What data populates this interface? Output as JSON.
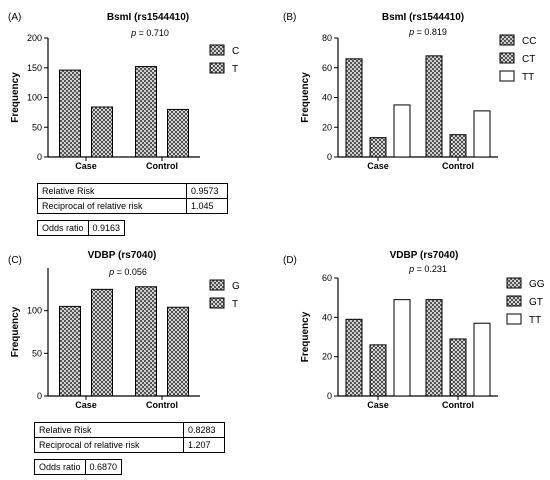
{
  "chart_data": [
    {
      "panel": "(A)",
      "type": "bar",
      "title": "BsmI (rs1544410)",
      "p_label": "p",
      "p_value": "= 0.710",
      "ylabel": "Frequency",
      "ylim": [
        0,
        200
      ],
      "yticks": [
        0,
        50,
        100,
        150,
        200
      ],
      "categories": [
        "Case",
        "Control"
      ],
      "series": [
        {
          "name": "C",
          "pattern": "checker",
          "values": [
            146,
            152
          ]
        },
        {
          "name": "T",
          "pattern": "cross",
          "values": [
            84,
            80
          ]
        }
      ],
      "legend_position": "right",
      "stats": [
        {
          "label": "Relative Risk",
          "value": "0.9573"
        },
        {
          "label": "Reciprocal of relative risk",
          "value": "1.045"
        }
      ],
      "odds": {
        "label": "Odds ratio",
        "value": "0.9163"
      }
    },
    {
      "panel": "(B)",
      "type": "bar",
      "title": "BsmI (rs1544410)",
      "p_label": "p",
      "p_value": "= 0.819",
      "ylabel": "Frequency",
      "ylim": [
        0,
        80
      ],
      "yticks": [
        0,
        20,
        40,
        60,
        80
      ],
      "categories": [
        "Case",
        "Control"
      ],
      "series": [
        {
          "name": "CC",
          "pattern": "checker",
          "values": [
            66,
            68
          ]
        },
        {
          "name": "CT",
          "pattern": "cross",
          "values": [
            13,
            15
          ]
        },
        {
          "name": "TT",
          "pattern": "none",
          "values": [
            35,
            31
          ]
        }
      ],
      "legend_position": "right"
    },
    {
      "panel": "(C)",
      "type": "bar",
      "title": "VDBP (rs7040)",
      "p_label": "p",
      "p_value": "= 0.056",
      "ylabel": "Frequency",
      "ylim": [
        0,
        150
      ],
      "yticks": [
        0,
        50,
        100
      ],
      "categories": [
        "Case",
        "Control"
      ],
      "series": [
        {
          "name": "G",
          "pattern": "checker",
          "values": [
            105,
            128
          ]
        },
        {
          "name": "T",
          "pattern": "cross",
          "values": [
            125,
            104
          ]
        }
      ],
      "legend_position": "right",
      "stats": [
        {
          "label": "Relative Risk",
          "value": "0.8283"
        },
        {
          "label": "Reciprocal of relative risk",
          "value": "1.207"
        }
      ],
      "odds": {
        "label": "Odds ratio",
        "value": "0.6870"
      }
    },
    {
      "panel": "(D)",
      "type": "bar",
      "title": "VDBP (rs7040)",
      "p_label": "p",
      "p_value": "= 0.231",
      "ylabel": "Frequency",
      "ylim": [
        0,
        60
      ],
      "yticks": [
        0,
        20,
        40,
        60
      ],
      "categories": [
        "Case",
        "Control"
      ],
      "series": [
        {
          "name": "GG",
          "pattern": "checker",
          "values": [
            39,
            49
          ]
        },
        {
          "name": "GT",
          "pattern": "cross",
          "values": [
            26,
            29
          ]
        },
        {
          "name": "TT",
          "pattern": "none",
          "values": [
            49,
            37
          ]
        }
      ],
      "legend_position": "right"
    }
  ]
}
